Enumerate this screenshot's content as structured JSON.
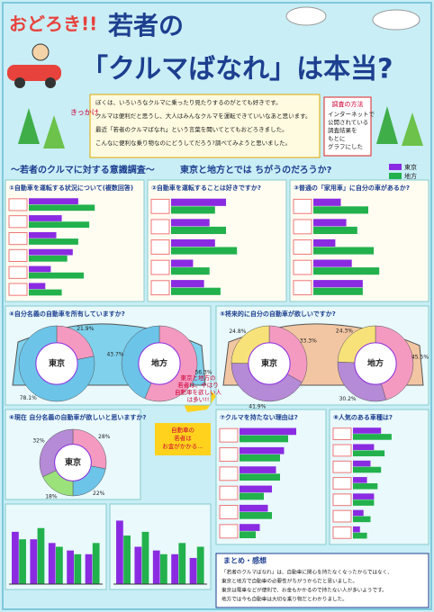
{
  "header": {
    "exclaim": "おどろき!!",
    "title_a": "若者の",
    "title_b": "「クルマばなれ」は本当?",
    "badge": "きっかけ",
    "intro": [
      "ぼくは、いろいろなクルマに乗ったり見たりするのがとても好きです。",
      "クルマは便利だと思うし、大人はみんなクルマを運転できていいなあと思います。",
      "最近「若者のクルマばなれ」という言葉を聞いてとてもおどろきました。",
      "こんなに便利な乗り物なのにどうしてだろう?調べてみようと思いました。"
    ],
    "method_title": "調査の方法",
    "method": [
      "インターネットで",
      "公開されている",
      "調査結果を",
      "もとに",
      "グラフにした"
    ]
  },
  "survey": {
    "heading": "〜若者のクルマに対する意識調査〜",
    "question": "東京と地方とでは ちがうのだろうか?",
    "legend": [
      {
        "name": "東京",
        "color": "#8a2be2"
      },
      {
        "name": "地方",
        "color": "#22b14c"
      }
    ]
  },
  "panels": [
    {
      "type": "hbar",
      "title": "①自動車を運転する状況について(複数回答)",
      "xlim": [
        0,
        100
      ],
      "series": [
        {
          "values": [
            45,
            30,
            25,
            40,
            20,
            15
          ]
        },
        {
          "values": [
            60,
            55,
            45,
            35,
            50,
            30
          ]
        }
      ]
    },
    {
      "type": "hbar",
      "title": "②自動車を運転することは好きですか?",
      "xlim": [
        0,
        100
      ],
      "series": [
        {
          "values": [
            50,
            35,
            40,
            20,
            30
          ]
        },
        {
          "values": [
            40,
            50,
            60,
            35,
            45
          ]
        }
      ]
    },
    {
      "type": "hbar",
      "title": "③普通の「家用車」に自分の車があるか?",
      "xlim": [
        0,
        100
      ],
      "series": [
        {
          "values": [
            25,
            30,
            20,
            35,
            45
          ]
        },
        {
          "values": [
            50,
            40,
            55,
            60,
            45
          ]
        }
      ]
    },
    {
      "type": "ring",
      "title": "④自分名義の自動車を所有していますか?",
      "rings": [
        {
          "name": "東京",
          "values": [
            21.9,
            78.1
          ],
          "value_labels": [
            "21.9%",
            "78.1%"
          ],
          "colors": [
            "#f49ac1",
            "#6cc4e8"
          ]
        },
        {
          "name": "地方",
          "values": [
            56.3,
            43.7
          ],
          "value_labels": [
            "56.3%",
            "43.7%"
          ],
          "colors": [
            "#f49ac1",
            "#6cc4e8"
          ]
        }
      ]
    },
    {
      "type": "ring",
      "title": "⑤将来的に自分の自動車が欲しいですか?",
      "rings": [
        {
          "name": "東京",
          "values": [
            33.3,
            41.9,
            24.8
          ],
          "value_labels": [
            "33.3%",
            "41.9%",
            "24.8%"
          ],
          "colors": [
            "#f49ac1",
            "#b58ad6",
            "#f7e27a"
          ]
        },
        {
          "name": "地方",
          "values": [
            45.5,
            30.2,
            24.3
          ],
          "value_labels": [
            "45.5%",
            "30.2%",
            "24.3%"
          ],
          "colors": [
            "#f49ac1",
            "#b58ad6",
            "#f7e27a"
          ]
        }
      ]
    },
    {
      "type": "ring",
      "title": "⑥現在 自分名義の自動車が欲しいと思いますか?",
      "rings": [
        {
          "name": "東京",
          "values": [
            28,
            22,
            18,
            32
          ],
          "value_labels": [
            "28%",
            "22%",
            "18%",
            "32%"
          ],
          "colors": [
            "#f49ac1",
            "#6cc4e8",
            "#9be27a",
            "#b58ad6"
          ]
        }
      ]
    },
    {
      "type": "vbar",
      "ylim": [
        0,
        100
      ],
      "series": [
        {
          "values": [
            70,
            60,
            55,
            45,
            40
          ]
        },
        {
          "values": [
            60,
            75,
            50,
            40,
            55
          ]
        }
      ]
    },
    {
      "type": "vbar",
      "ylim": [
        0,
        100
      ],
      "series": [
        {
          "values": [
            85,
            50,
            45,
            40,
            35
          ]
        },
        {
          "values": [
            65,
            70,
            40,
            55,
            50
          ]
        }
      ]
    },
    {
      "type": "hbar",
      "title": "⑦クルマを持たない理由は?",
      "xlim": [
        0,
        100
      ],
      "series": [
        {
          "values": [
            70,
            55,
            45,
            40,
            35,
            25
          ]
        },
        {
          "values": [
            60,
            50,
            50,
            30,
            40,
            20
          ]
        }
      ]
    },
    {
      "type": "hbar",
      "title": "⑧人気のある車種は?",
      "xlim": [
        0,
        100
      ],
      "series": [
        {
          "values": [
            40,
            30,
            25,
            20,
            30,
            15,
            10
          ]
        },
        {
          "values": [
            55,
            45,
            40,
            35,
            30,
            25,
            20
          ]
        }
      ]
    }
  ],
  "note": [
    "東京と地方の",
    "若者は、やはり",
    "自動車を欲しい人",
    "は多い!!"
  ],
  "note2": [
    "自動車の",
    "若者は",
    "お金がかかる…"
  ],
  "summary": {
    "title": "まとめ・感想",
    "lines": [
      "「若者のクルマばなれ」は、自動車に関心を持たなくなったからではなく、",
      "東京と地方で自動車の必要性がちがうからだと思いました。",
      "東京は電車などが便利で、お金もかかるので持たない人が多いようです。",
      "地方では今も自動車は大切な乗り物だとわかりました。"
    ]
  }
}
